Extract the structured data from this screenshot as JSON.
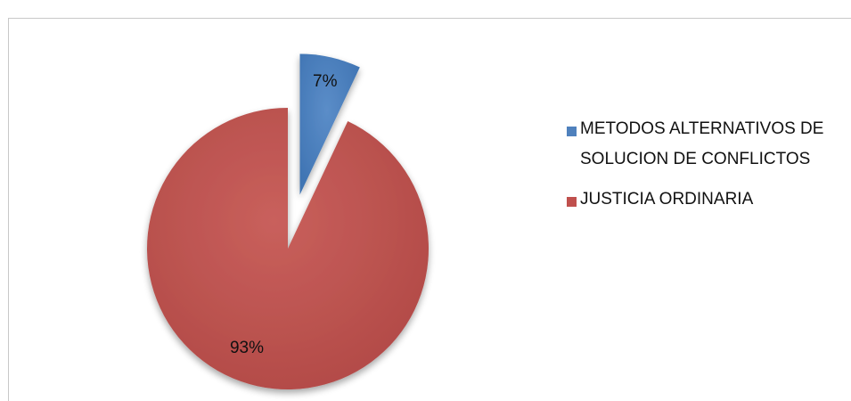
{
  "chart_data": {
    "type": "pie",
    "categories": [
      "METODOS ALTERNATIVOS DE SOLUCION DE CONFLICTOS",
      "JUSTICIA ORDINARIA"
    ],
    "values": [
      7,
      93
    ],
    "data_labels": [
      "7%",
      "93%"
    ],
    "colors": [
      "#4f81bd",
      "#c0504d"
    ],
    "explode": [
      true,
      false
    ],
    "legend_position": "right",
    "title": ""
  },
  "legend": {
    "items": [
      {
        "label": "METODOS ALTERNATIVOS DE SOLUCION DE CONFLICTOS",
        "color": "#4f81bd"
      },
      {
        "label": "JUSTICIA ORDINARIA",
        "color": "#c0504d"
      }
    ]
  }
}
